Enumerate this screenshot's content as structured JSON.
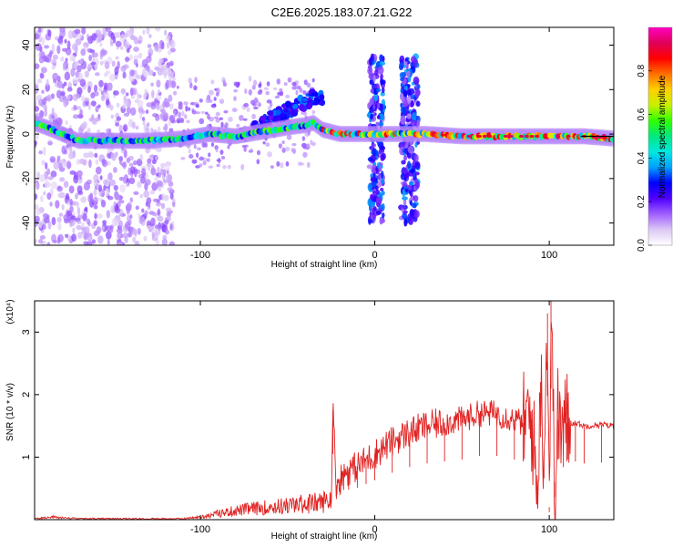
{
  "title": "C2E6.2025.183.07.21.G22",
  "chart_data": [
    {
      "type": "heatmap",
      "xlabel": "Height of straight line (km)",
      "ylabel": "Frequency (Hz)",
      "xlim": [
        -195,
        137
      ],
      "ylim": [
        -50,
        48
      ],
      "xticks": [
        -100,
        0,
        100
      ],
      "xtick_labels": [
        "-100",
        "0",
        "100"
      ],
      "yticks": [
        -40,
        -20,
        0,
        20,
        40
      ],
      "ytick_labels": [
        "-40",
        "-20",
        "0",
        "20",
        "40"
      ],
      "colorbar": {
        "label": "Normalized spectral amplitude",
        "range": [
          0,
          1
        ],
        "ticks": [
          0.0,
          0.2,
          0.4,
          0.6,
          0.8
        ],
        "tick_labels": [
          "0.0",
          "0.2",
          "0.4",
          "0.6",
          "0.8"
        ],
        "colors": [
          "#ffffff",
          "#dcc8f5",
          "#a060ff",
          "#5000ff",
          "#0000ff",
          "#00a0ff",
          "#00e8e0",
          "#00e880",
          "#30ff00",
          "#c8f000",
          "#ffd000",
          "#ff7000",
          "#ff0000",
          "#e0005a",
          "#ff00c0"
        ]
      },
      "ridge": {
        "x": [
          -195,
          -185,
          -170,
          -150,
          -130,
          -110,
          -95,
          -80,
          -65,
          -50,
          -40,
          -35,
          -30,
          -20,
          -10,
          0,
          10,
          20,
          30,
          50,
          70,
          90,
          100,
          110,
          120,
          137
        ],
        "y": [
          5,
          2,
          -3,
          -3,
          -3,
          -2,
          0,
          -1,
          1,
          3,
          4,
          5,
          2,
          0,
          0,
          0,
          0,
          0,
          0,
          -1,
          -1,
          -1,
          -1,
          -1,
          -1,
          -2
        ]
      }
    },
    {
      "type": "line",
      "xlabel": "Height of straight line (km)",
      "ylabel": "SNR (10 * v/v)",
      "y_multiplier_label": "(x10⁴)",
      "xlim": [
        -195,
        137
      ],
      "ylim": [
        0,
        3.5
      ],
      "xticks": [
        -100,
        0,
        100
      ],
      "xtick_labels": [
        "-100",
        "0",
        "100"
      ],
      "yticks": [
        1,
        2,
        3
      ],
      "ytick_labels": [
        "1",
        "2",
        "3"
      ],
      "color": "#e02020",
      "series": [
        {
          "x": [
            -195,
            -185,
            -170,
            -150,
            -130,
            -110,
            -100,
            -90,
            -80,
            -70,
            -60,
            -50,
            -40,
            -30,
            -25,
            -24,
            -22,
            -20,
            -15,
            -10,
            -5,
            0,
            10,
            20,
            30,
            40,
            50,
            60,
            70,
            80,
            85,
            90,
            93,
            95,
            97,
            99,
            100,
            101,
            103,
            105,
            108,
            110,
            115,
            120,
            130,
            137
          ],
          "y": [
            0.02,
            0.05,
            0.02,
            0.02,
            0.02,
            0.02,
            0.05,
            0.12,
            0.18,
            0.22,
            0.25,
            0.28,
            0.32,
            0.35,
            0.42,
            1.75,
            0.55,
            0.65,
            0.8,
            0.85,
            0.95,
            1.05,
            1.25,
            1.4,
            1.5,
            1.55,
            1.6,
            1.7,
            1.7,
            1.6,
            1.55,
            1.6,
            0.4,
            2.2,
            1.1,
            3.3,
            0.2,
            3.5,
            0.6,
            1.6,
            1.4,
            1.55,
            1.55,
            1.5,
            1.52,
            1.5
          ]
        }
      ]
    }
  ]
}
